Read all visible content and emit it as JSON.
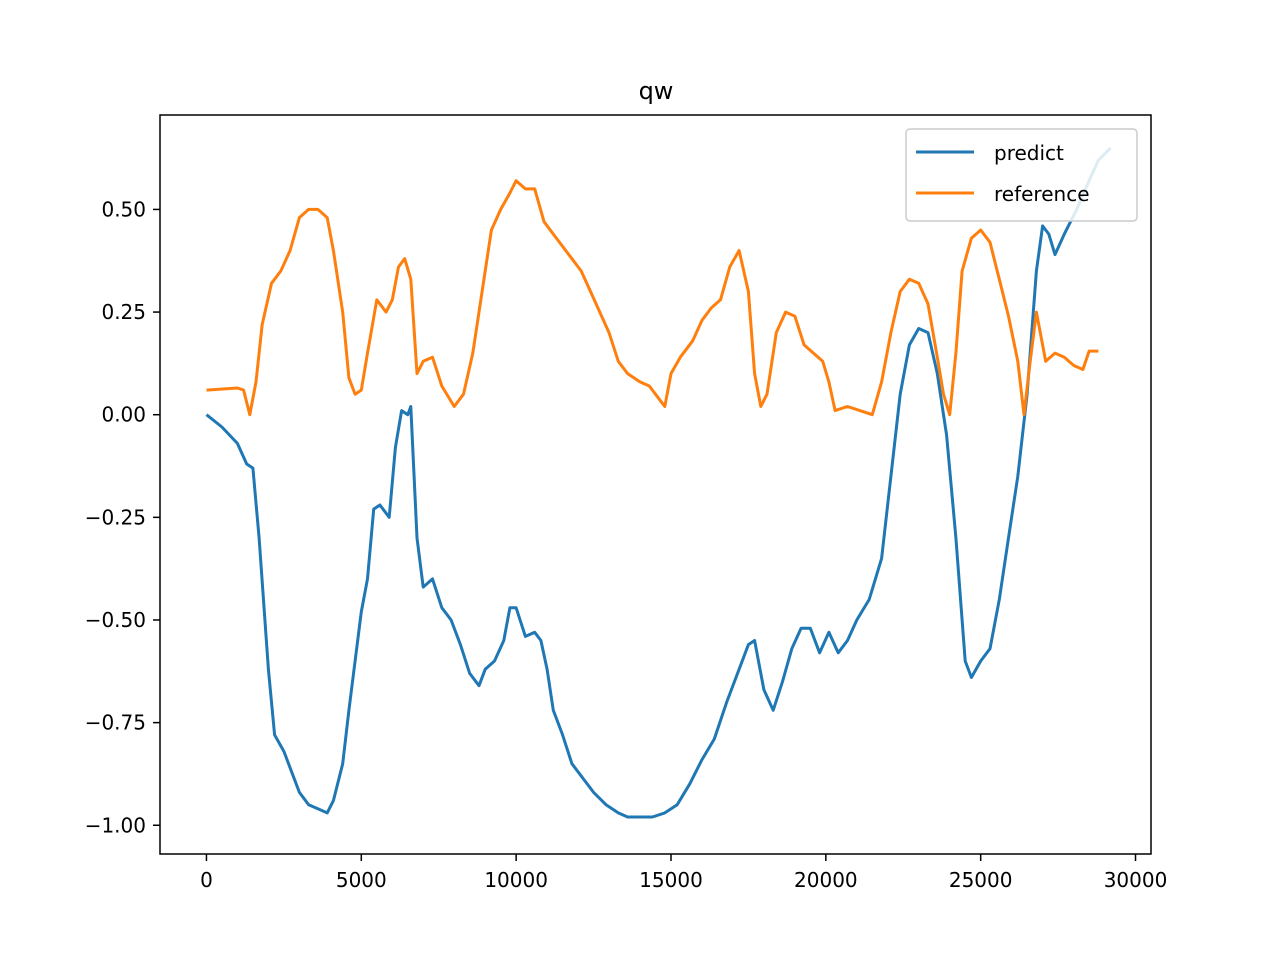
{
  "chart_data": {
    "type": "line",
    "title": "qw",
    "xlabel": "",
    "ylabel": "",
    "xlim": [
      -1500,
      30500
    ],
    "ylim": [
      -1.07,
      0.73
    ],
    "xticks": [
      0,
      5000,
      10000,
      15000,
      20000,
      25000,
      30000
    ],
    "xtick_labels": [
      "0",
      "5000",
      "10000",
      "15000",
      "20000",
      "25000",
      "30000"
    ],
    "yticks": [
      -1.0,
      -0.75,
      -0.5,
      -0.25,
      0.0,
      0.25,
      0.5
    ],
    "ytick_labels": [
      "−1.00",
      "−0.75",
      "−0.50",
      "−0.25",
      "0.00",
      "0.25",
      "0.50"
    ],
    "grid": false,
    "legend": "top-right",
    "series": [
      {
        "name": "predict",
        "color": "#1f77b4",
        "points": [
          [
            0,
            0.0
          ],
          [
            500,
            -0.03
          ],
          [
            1000,
            -0.07
          ],
          [
            1300,
            -0.12
          ],
          [
            1500,
            -0.13
          ],
          [
            1700,
            -0.3
          ],
          [
            2000,
            -0.62
          ],
          [
            2200,
            -0.78
          ],
          [
            2500,
            -0.82
          ],
          [
            2700,
            -0.86
          ],
          [
            3000,
            -0.92
          ],
          [
            3300,
            -0.95
          ],
          [
            3600,
            -0.96
          ],
          [
            3900,
            -0.97
          ],
          [
            4100,
            -0.94
          ],
          [
            4400,
            -0.85
          ],
          [
            4600,
            -0.72
          ],
          [
            4800,
            -0.6
          ],
          [
            5000,
            -0.48
          ],
          [
            5200,
            -0.4
          ],
          [
            5400,
            -0.23
          ],
          [
            5600,
            -0.22
          ],
          [
            5900,
            -0.25
          ],
          [
            6100,
            -0.08
          ],
          [
            6300,
            0.01
          ],
          [
            6500,
            0.0
          ],
          [
            6600,
            0.02
          ],
          [
            6800,
            -0.3
          ],
          [
            7000,
            -0.42
          ],
          [
            7300,
            -0.4
          ],
          [
            7600,
            -0.47
          ],
          [
            7900,
            -0.5
          ],
          [
            8200,
            -0.56
          ],
          [
            8500,
            -0.63
          ],
          [
            8800,
            -0.66
          ],
          [
            9000,
            -0.62
          ],
          [
            9300,
            -0.6
          ],
          [
            9600,
            -0.55
          ],
          [
            9800,
            -0.47
          ],
          [
            10000,
            -0.47
          ],
          [
            10300,
            -0.54
          ],
          [
            10600,
            -0.53
          ],
          [
            10800,
            -0.55
          ],
          [
            11000,
            -0.62
          ],
          [
            11200,
            -0.72
          ],
          [
            11500,
            -0.78
          ],
          [
            11800,
            -0.85
          ],
          [
            12100,
            -0.88
          ],
          [
            12500,
            -0.92
          ],
          [
            12900,
            -0.95
          ],
          [
            13300,
            -0.97
          ],
          [
            13600,
            -0.98
          ],
          [
            14000,
            -0.98
          ],
          [
            14400,
            -0.98
          ],
          [
            14800,
            -0.97
          ],
          [
            15200,
            -0.95
          ],
          [
            15600,
            -0.9
          ],
          [
            16000,
            -0.84
          ],
          [
            16400,
            -0.79
          ],
          [
            16800,
            -0.7
          ],
          [
            17200,
            -0.62
          ],
          [
            17500,
            -0.56
          ],
          [
            17700,
            -0.55
          ],
          [
            18000,
            -0.67
          ],
          [
            18300,
            -0.72
          ],
          [
            18600,
            -0.65
          ],
          [
            18900,
            -0.57
          ],
          [
            19200,
            -0.52
          ],
          [
            19500,
            -0.52
          ],
          [
            19800,
            -0.58
          ],
          [
            20100,
            -0.53
          ],
          [
            20400,
            -0.58
          ],
          [
            20700,
            -0.55
          ],
          [
            21000,
            -0.5
          ],
          [
            21400,
            -0.45
          ],
          [
            21800,
            -0.35
          ],
          [
            22100,
            -0.15
          ],
          [
            22400,
            0.05
          ],
          [
            22700,
            0.17
          ],
          [
            23000,
            0.21
          ],
          [
            23300,
            0.2
          ],
          [
            23600,
            0.1
          ],
          [
            23900,
            -0.05
          ],
          [
            24200,
            -0.3
          ],
          [
            24500,
            -0.6
          ],
          [
            24700,
            -0.64
          ],
          [
            25000,
            -0.6
          ],
          [
            25300,
            -0.57
          ],
          [
            25600,
            -0.45
          ],
          [
            25900,
            -0.3
          ],
          [
            26200,
            -0.15
          ],
          [
            26500,
            0.05
          ],
          [
            26800,
            0.35
          ],
          [
            27000,
            0.46
          ],
          [
            27200,
            0.44
          ],
          [
            27400,
            0.39
          ],
          [
            27700,
            0.44
          ],
          [
            28100,
            0.5
          ],
          [
            28500,
            0.57
          ],
          [
            28800,
            0.62
          ],
          [
            29200,
            0.65
          ]
        ]
      },
      {
        "name": "reference",
        "color": "#ff7f0e",
        "points": [
          [
            0,
            0.06
          ],
          [
            1000,
            0.065
          ],
          [
            1200,
            0.06
          ],
          [
            1400,
            0.0
          ],
          [
            1600,
            0.08
          ],
          [
            1800,
            0.22
          ],
          [
            2100,
            0.32
          ],
          [
            2400,
            0.35
          ],
          [
            2700,
            0.4
          ],
          [
            3000,
            0.48
          ],
          [
            3300,
            0.5
          ],
          [
            3600,
            0.5
          ],
          [
            3900,
            0.48
          ],
          [
            4100,
            0.4
          ],
          [
            4400,
            0.25
          ],
          [
            4600,
            0.09
          ],
          [
            4800,
            0.05
          ],
          [
            5000,
            0.06
          ],
          [
            5200,
            0.15
          ],
          [
            5500,
            0.28
          ],
          [
            5800,
            0.25
          ],
          [
            6000,
            0.28
          ],
          [
            6200,
            0.36
          ],
          [
            6400,
            0.38
          ],
          [
            6600,
            0.33
          ],
          [
            6800,
            0.1
          ],
          [
            7000,
            0.13
          ],
          [
            7300,
            0.14
          ],
          [
            7600,
            0.07
          ],
          [
            8000,
            0.02
          ],
          [
            8300,
            0.05
          ],
          [
            8600,
            0.15
          ],
          [
            8900,
            0.3
          ],
          [
            9200,
            0.45
          ],
          [
            9500,
            0.5
          ],
          [
            9800,
            0.54
          ],
          [
            10000,
            0.57
          ],
          [
            10300,
            0.55
          ],
          [
            10600,
            0.55
          ],
          [
            10900,
            0.47
          ],
          [
            11200,
            0.44
          ],
          [
            11500,
            0.41
          ],
          [
            11800,
            0.38
          ],
          [
            12100,
            0.35
          ],
          [
            12400,
            0.3
          ],
          [
            12700,
            0.25
          ],
          [
            13000,
            0.2
          ],
          [
            13300,
            0.13
          ],
          [
            13600,
            0.1
          ],
          [
            14000,
            0.08
          ],
          [
            14300,
            0.07
          ],
          [
            14600,
            0.04
          ],
          [
            14800,
            0.02
          ],
          [
            15000,
            0.1
          ],
          [
            15300,
            0.14
          ],
          [
            15700,
            0.18
          ],
          [
            16000,
            0.23
          ],
          [
            16300,
            0.26
          ],
          [
            16600,
            0.28
          ],
          [
            16900,
            0.36
          ],
          [
            17200,
            0.4
          ],
          [
            17500,
            0.3
          ],
          [
            17700,
            0.1
          ],
          [
            17900,
            0.02
          ],
          [
            18100,
            0.05
          ],
          [
            18400,
            0.2
          ],
          [
            18700,
            0.25
          ],
          [
            19000,
            0.24
          ],
          [
            19300,
            0.17
          ],
          [
            19600,
            0.15
          ],
          [
            19900,
            0.13
          ],
          [
            20100,
            0.08
          ],
          [
            20300,
            0.01
          ],
          [
            20700,
            0.02
          ],
          [
            21100,
            0.01
          ],
          [
            21500,
            0.0
          ],
          [
            21800,
            0.08
          ],
          [
            22100,
            0.2
          ],
          [
            22400,
            0.3
          ],
          [
            22700,
            0.33
          ],
          [
            23000,
            0.32
          ],
          [
            23300,
            0.27
          ],
          [
            23600,
            0.14
          ],
          [
            23800,
            0.05
          ],
          [
            24000,
            0.0
          ],
          [
            24200,
            0.15
          ],
          [
            24400,
            0.35
          ],
          [
            24700,
            0.43
          ],
          [
            25000,
            0.45
          ],
          [
            25300,
            0.42
          ],
          [
            25600,
            0.33
          ],
          [
            25900,
            0.24
          ],
          [
            26200,
            0.13
          ],
          [
            26400,
            0.0
          ],
          [
            26600,
            0.13
          ],
          [
            26800,
            0.25
          ],
          [
            27100,
            0.13
          ],
          [
            27400,
            0.15
          ],
          [
            27700,
            0.14
          ],
          [
            28000,
            0.12
          ],
          [
            28300,
            0.11
          ],
          [
            28500,
            0.155
          ],
          [
            28800,
            0.155
          ]
        ]
      }
    ]
  }
}
